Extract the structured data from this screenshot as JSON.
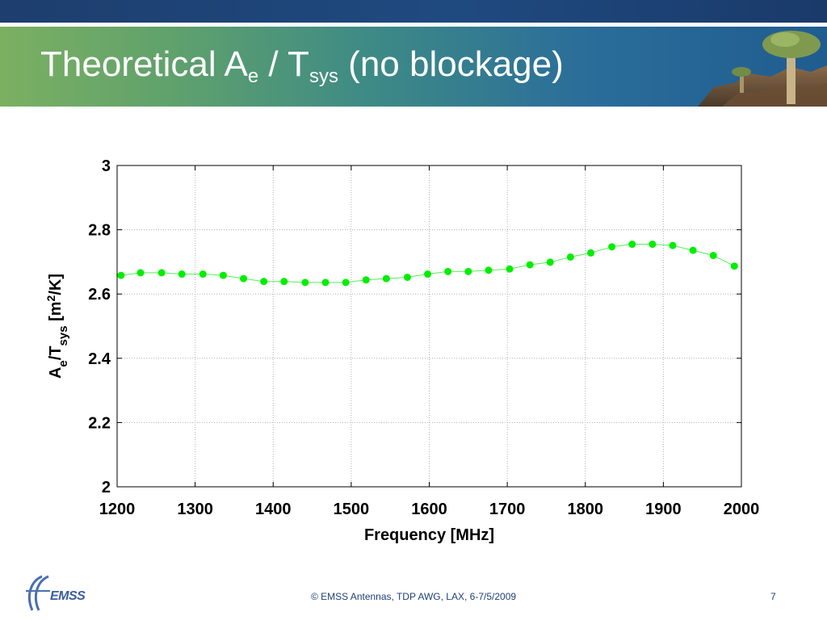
{
  "slide": {
    "title_main": "Theoretical A",
    "title_sub1": "e",
    "title_mid": " / T",
    "title_sub2": "sys",
    "title_end": " (no blockage)",
    "footer": "© EMSS Antennas, TDP AWG, LAX, 6-7/5/2009",
    "page_number": "7",
    "logo_text": "EMSS"
  },
  "chart_data": {
    "type": "scatter",
    "xlabel": "Frequency [MHz]",
    "ylabel_parts": [
      "A",
      "e",
      "/T",
      "sys",
      " [m",
      "2",
      "/K]"
    ],
    "xlim": [
      1200,
      2000
    ],
    "ylim": [
      2,
      3
    ],
    "xticks": [
      1200,
      1300,
      1400,
      1500,
      1600,
      1700,
      1800,
      1900,
      2000
    ],
    "yticks": [
      2,
      2.2,
      2.4,
      2.6,
      2.8,
      3
    ],
    "ytick_labels": [
      "2",
      "2.2",
      "2.4",
      "2.6",
      "2.8",
      "3"
    ],
    "grid": true,
    "marker_color": "#00ee00",
    "x": [
      1205,
      1230,
      1257,
      1283,
      1310,
      1336,
      1362,
      1388,
      1414,
      1441,
      1467,
      1493,
      1519,
      1545,
      1572,
      1598,
      1624,
      1650,
      1676,
      1703,
      1729,
      1755,
      1781,
      1807,
      1834,
      1860,
      1886,
      1912,
      1938,
      1964,
      1991
    ],
    "y": [
      2.658,
      2.666,
      2.666,
      2.662,
      2.662,
      2.658,
      2.648,
      2.639,
      2.639,
      2.636,
      2.636,
      2.636,
      2.644,
      2.648,
      2.652,
      2.662,
      2.67,
      2.67,
      2.674,
      2.678,
      2.691,
      2.699,
      2.715,
      2.728,
      2.747,
      2.755,
      2.755,
      2.751,
      2.736,
      2.72,
      2.687
    ]
  }
}
